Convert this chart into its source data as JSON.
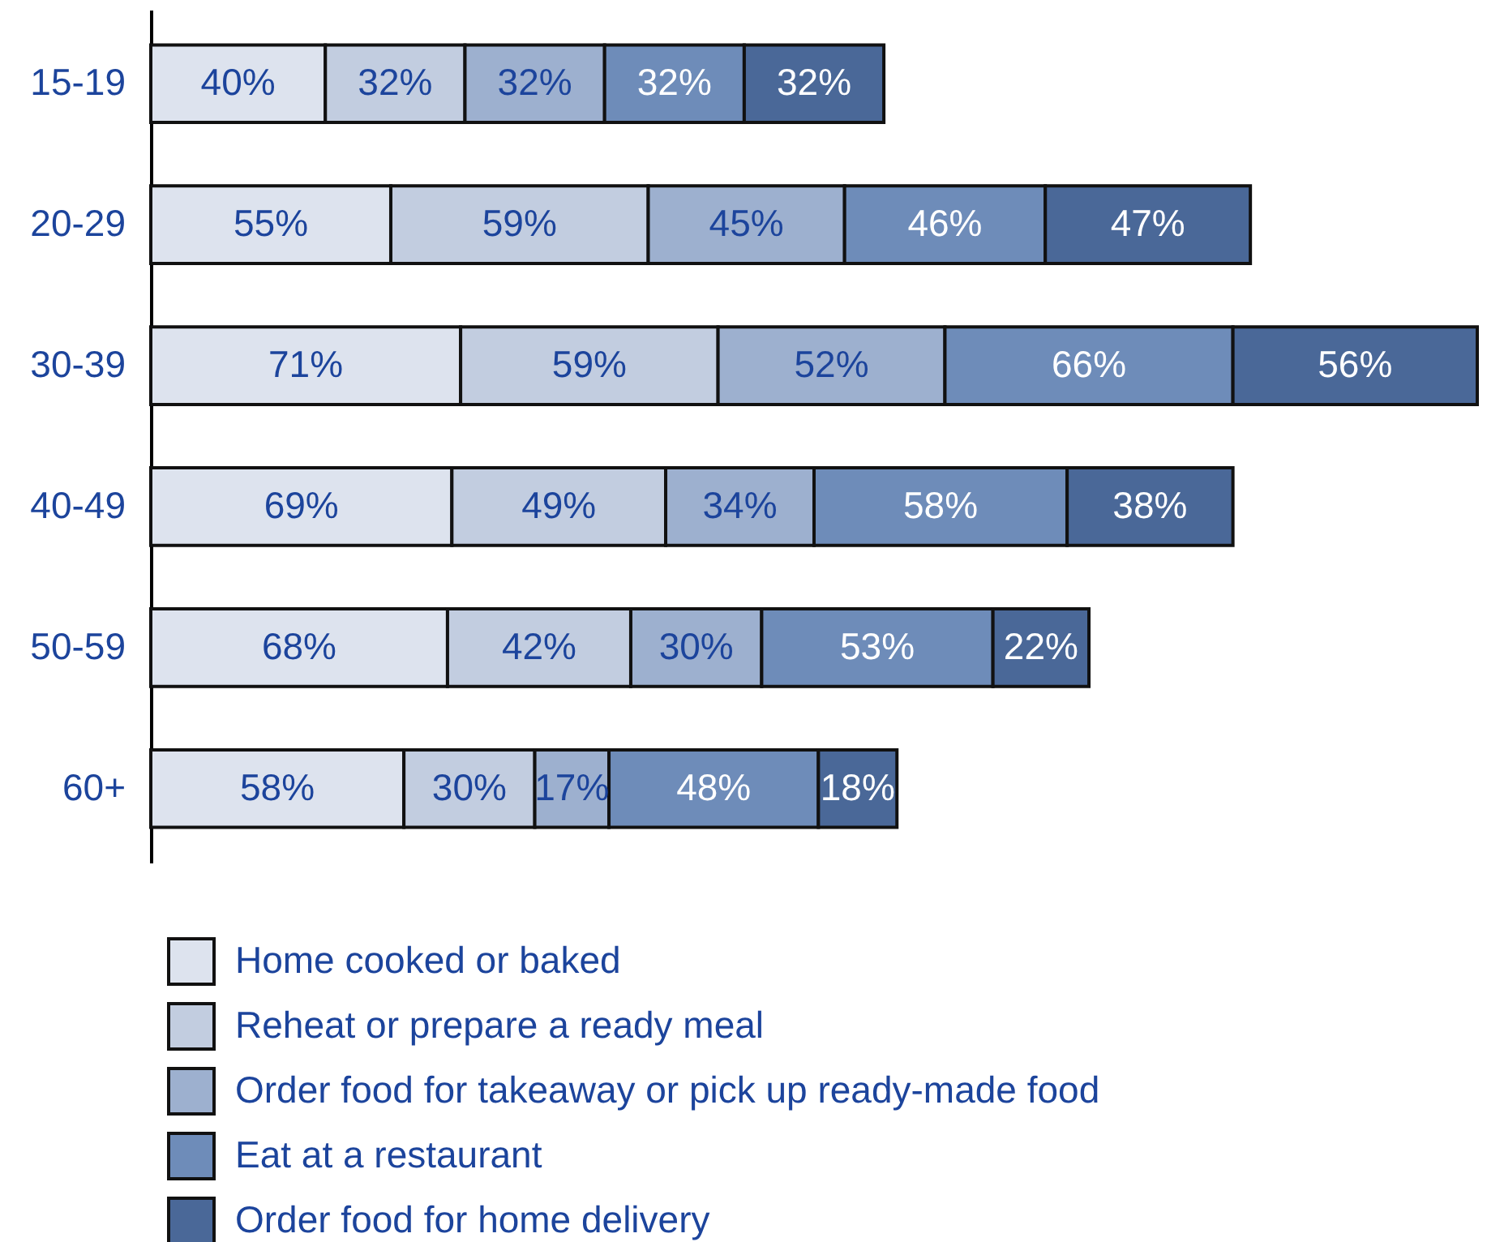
{
  "chart_data": {
    "type": "bar",
    "orientation": "horizontal",
    "stacked": true,
    "categories": [
      "15-19",
      "20-29",
      "30-39",
      "40-49",
      "50-59",
      "60+"
    ],
    "series": [
      {
        "name": "Home cooked or baked",
        "color": "#dde3ee",
        "values": [
          40,
          55,
          71,
          69,
          68,
          58
        ],
        "value_labels": [
          "40%",
          "55%",
          "71%",
          "69%",
          "68%",
          "58%"
        ]
      },
      {
        "name": "Reheat or prepare a ready meal",
        "color": "#c2cde0",
        "values": [
          32,
          59,
          59,
          49,
          42,
          30
        ],
        "value_labels": [
          "32%",
          "59%",
          "59%",
          "49%",
          "42%",
          "30%"
        ]
      },
      {
        "name": "Order food for takeaway or pick up ready-made food",
        "color": "#9db0cf",
        "values": [
          32,
          45,
          52,
          34,
          30,
          17
        ],
        "value_labels": [
          "32%",
          "45%",
          "52%",
          "34%",
          "30%",
          "17%"
        ]
      },
      {
        "name": "Eat at a restaurant",
        "color": "#6e8cb9",
        "values": [
          32,
          46,
          66,
          58,
          53,
          48
        ],
        "value_labels": [
          "32%",
          "46%",
          "66%",
          "58%",
          "53%",
          "48%"
        ]
      },
      {
        "name": "Order food for home delivery",
        "color": "#4a6898",
        "values": [
          32,
          47,
          56,
          38,
          22,
          18
        ],
        "value_labels": [
          "32%",
          "47%",
          "56%",
          "38%",
          "22%",
          "18%"
        ]
      }
    ],
    "legend": "bottom left",
    "tick_labels": "y"
  }
}
